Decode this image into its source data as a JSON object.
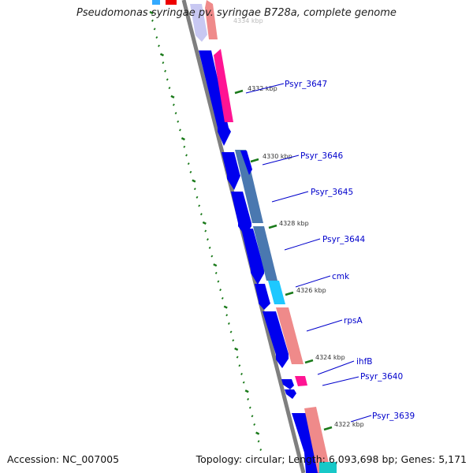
{
  "title": "Pseudomonas syringae pv. syringae B728a, complete genome",
  "footer": {
    "accession": "Accession: NC_007005",
    "summary": "Topology: circular; Length: 6,093,698 bp; Genes: 5,171"
  },
  "colors": {
    "backbone": "#7f7f7f",
    "tick": "#1a7a1a",
    "cds_forward": "#0000ee",
    "cds_reverse_pink": "#ef8a8a",
    "cds_magenta": "#ff1493",
    "cds_steel": "#4a78b0",
    "cds_cyan": "#1ec8ff",
    "label": "#0000cc"
  },
  "scale_labels": [
    "4334 kbp",
    "4332 kbp",
    "4330 kbp",
    "4328 kbp",
    "4326 kbp",
    "4324 kbp",
    "4322 kbp"
  ],
  "gene_labels": [
    "Psyr_3647",
    "Psyr_3646",
    "Psyr_3645",
    "Psyr_3644",
    "cmk",
    "rpsA",
    "ihfB",
    "Psyr_3640",
    "Psyr_3639"
  ]
}
